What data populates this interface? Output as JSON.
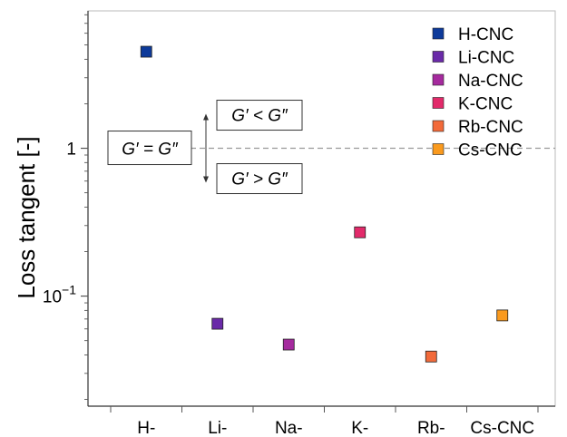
{
  "chart_data": {
    "type": "scatter",
    "xlabel": "",
    "ylabel": "Loss tangent [-]",
    "yscale": "log",
    "ylim": [
      0.018,
      8.5
    ],
    "yticks": [
      {
        "value": 1,
        "label": "1"
      },
      {
        "value": 0.1,
        "label": "10",
        "sup": "−1"
      }
    ],
    "categories": [
      "H-",
      "Li-",
      "Na-",
      "K-",
      "Rb-",
      "Cs-CNC"
    ],
    "series": [
      {
        "name": "H-CNC",
        "x": "H-",
        "y": 4.5,
        "color": "#0d3a9a"
      },
      {
        "name": "Li-CNC",
        "x": "Li-",
        "y": 0.065,
        "color": "#6a2aa8"
      },
      {
        "name": "Na-CNC",
        "x": "Na-",
        "y": 0.047,
        "color": "#a52a9e"
      },
      {
        "name": "K-CNC",
        "x": "K-",
        "y": 0.27,
        "color": "#e22a6a"
      },
      {
        "name": "Rb-CNC",
        "x": "Rb-",
        "y": 0.039,
        "color": "#f26a3a"
      },
      {
        "name": "Cs-CNC",
        "x": "Cs-CNC",
        "y": 0.074,
        "color": "#fa9a1e"
      }
    ],
    "reference_line": {
      "y": 1,
      "style": "dashed",
      "color": "#999999"
    },
    "annotations": {
      "equal": "G′ = G″",
      "less": "G′ < G″",
      "greater": "G′ > G″"
    },
    "legend_position": "top-right",
    "grid": false
  }
}
